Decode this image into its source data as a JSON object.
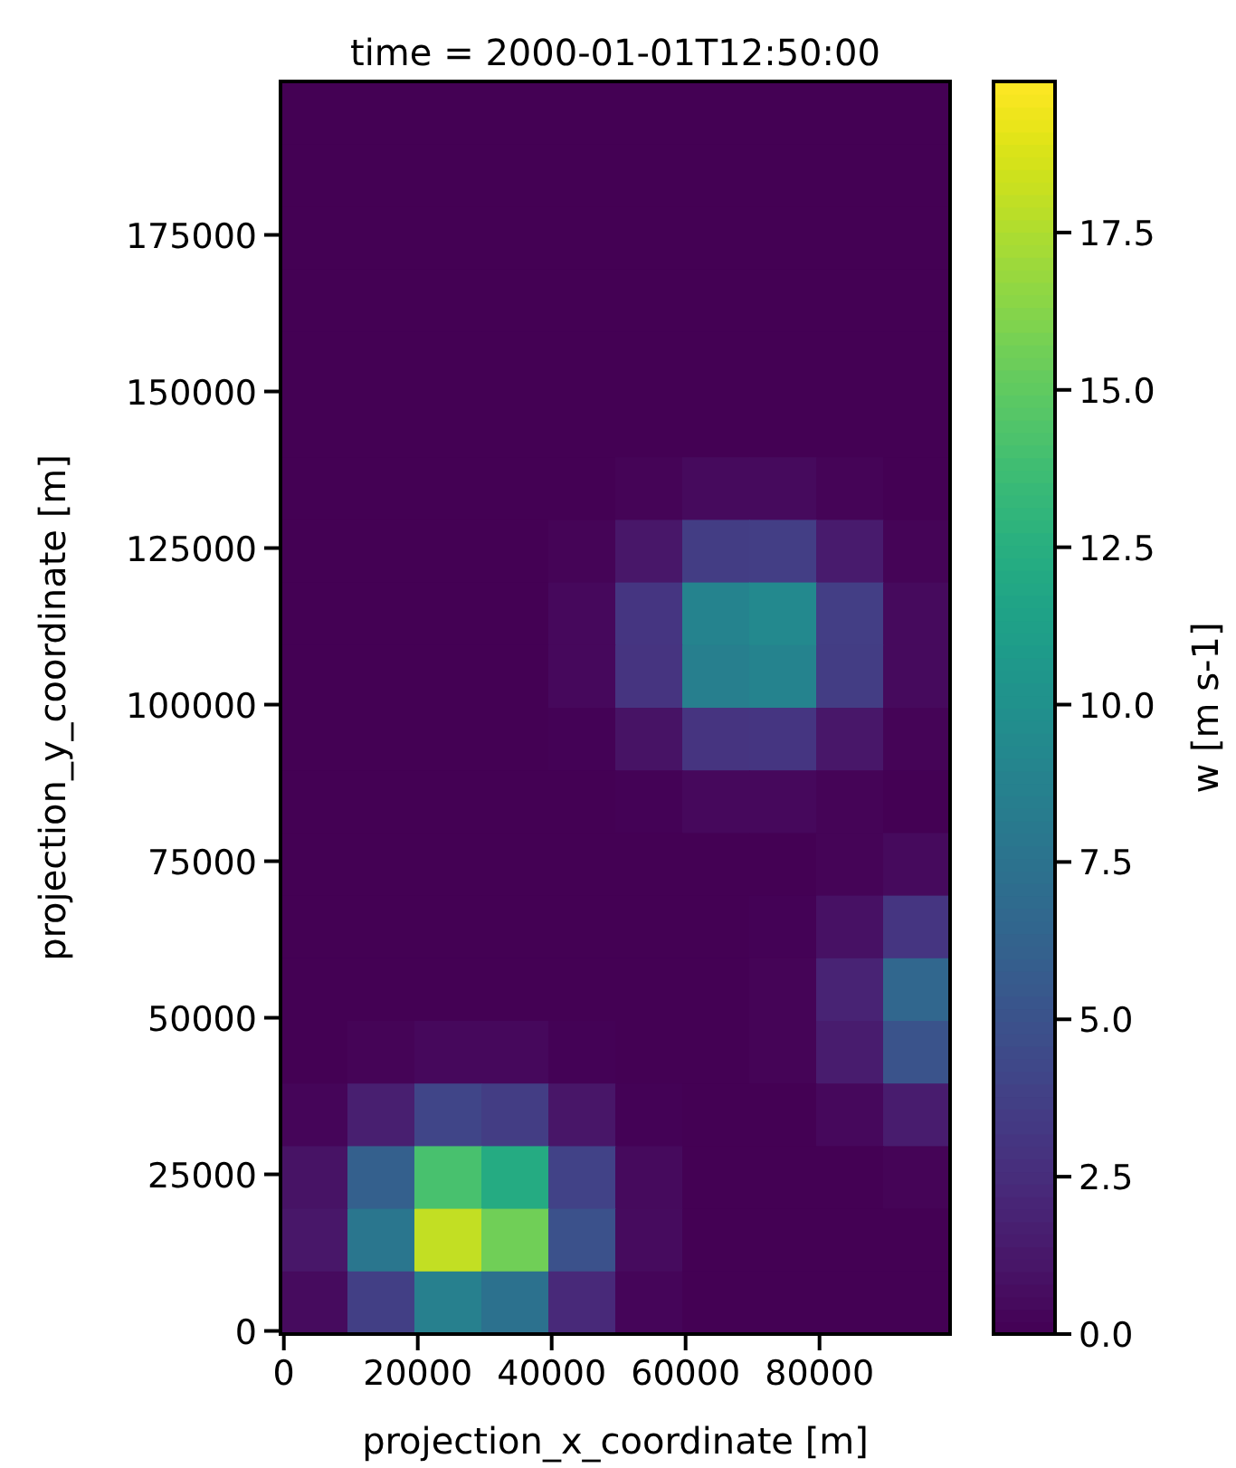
{
  "chart_data": {
    "type": "heatmap",
    "title": "time = 2000-01-01T12:50:00",
    "xlabel": "projection_x_coordinate [m]",
    "ylabel": "projection_y_coordinate [m]",
    "clabel": "w [m s-1]",
    "x": [
      4500,
      14500,
      24500,
      34500,
      44500,
      54500,
      64500,
      74500,
      84500,
      94500
    ],
    "y": [
      194500,
      184500,
      174500,
      164500,
      154500,
      144500,
      134500,
      124500,
      114500,
      104500,
      94500,
      84500,
      74500,
      64500,
      54500,
      44500,
      34500,
      24500,
      14500,
      4500
    ],
    "xlim": [
      -500,
      99500
    ],
    "ylim": [
      -500,
      199500
    ],
    "xticks": [
      0,
      20000,
      40000,
      60000,
      80000
    ],
    "yticks": [
      0,
      25000,
      50000,
      75000,
      100000,
      125000,
      150000,
      175000
    ],
    "clim": [
      0,
      19.9
    ],
    "cticks": [
      {
        "value": 0,
        "label": "0.0"
      },
      2.5,
      {
        "value": 5,
        "label": "5.0"
      },
      7.5,
      {
        "value": 10,
        "label": "10.0"
      },
      12.5,
      {
        "value": 15,
        "label": "15.0"
      },
      17.5
    ],
    "cells": [
      [
        0,
        0,
        0,
        0,
        0,
        0,
        0,
        0,
        0,
        0
      ],
      [
        0,
        0,
        0,
        0,
        0,
        0,
        0,
        0,
        0,
        0
      ],
      [
        0,
        0,
        0,
        0,
        0,
        0,
        0,
        0,
        0,
        0
      ],
      [
        0,
        0,
        0,
        0,
        0,
        0,
        0,
        0,
        0,
        0
      ],
      [
        0,
        0,
        0,
        0,
        0,
        0,
        0,
        0,
        0,
        0
      ],
      [
        0,
        0,
        0,
        0,
        0,
        0,
        0,
        0,
        0,
        0
      ],
      [
        0,
        0,
        0,
        0,
        0,
        0.2,
        0.5,
        0.5,
        0.2,
        0
      ],
      [
        0,
        0,
        0,
        0,
        0.2,
        1.2,
        3.5,
        3.6,
        1.4,
        0.2
      ],
      [
        0,
        0,
        0,
        0,
        0.4,
        3.1,
        8.9,
        9.4,
        3.6,
        0.5
      ],
      [
        0,
        0,
        0,
        0,
        0.4,
        3.0,
        8.5,
        8.9,
        3.5,
        0.5
      ],
      [
        0,
        0,
        0,
        0,
        0.1,
        1.0,
        3.0,
        3.1,
        1.2,
        0.2
      ],
      [
        0,
        0,
        0,
        0,
        0,
        0.1,
        0.4,
        0.4,
        0.2,
        0
      ],
      [
        0,
        0,
        0,
        0,
        0,
        0,
        0,
        0,
        0.2,
        0.5
      ],
      [
        0,
        0,
        0,
        0,
        0,
        0,
        0,
        0.1,
        0.9,
        3.1
      ],
      [
        0,
        0,
        0,
        0,
        0,
        0,
        0,
        0.2,
        1.9,
        6.6
      ],
      [
        0,
        0.2,
        0.4,
        0.4,
        0.1,
        0,
        0,
        0.2,
        1.5,
        5.1
      ],
      [
        0.3,
        1.7,
        4.1,
        3.5,
        1.1,
        0.1,
        0,
        0,
        0.4,
        1.5
      ],
      [
        1.0,
        6.0,
        14.1,
        12.2,
        3.9,
        0.5,
        0,
        0,
        0,
        0.2
      ],
      [
        1.2,
        7.8,
        18.1,
        15.6,
        4.9,
        0.6,
        0,
        0,
        0,
        0
      ],
      [
        0.6,
        3.7,
        8.6,
        7.4,
        2.3,
        0.3,
        0,
        0,
        0,
        0
      ]
    ]
  }
}
